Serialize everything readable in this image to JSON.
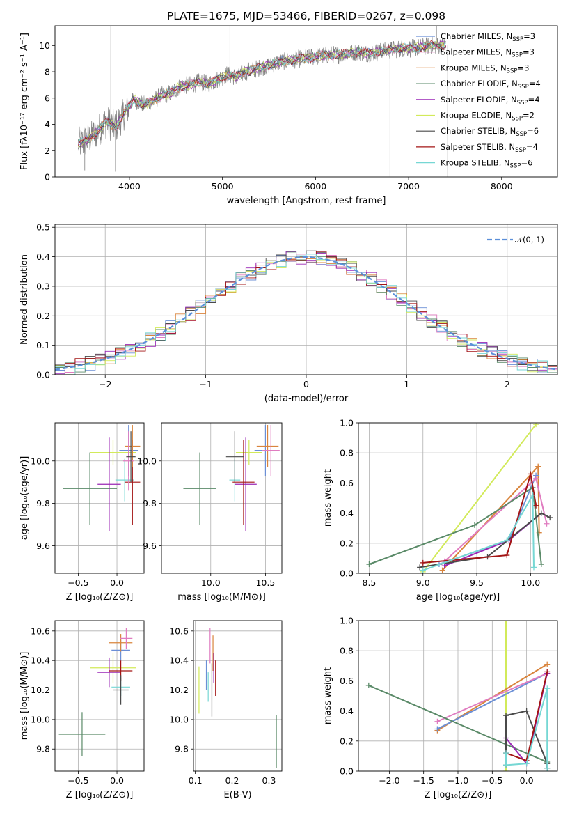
{
  "chart_data": [
    {
      "id": "spectrum",
      "type": "line",
      "title": "PLATE=1675, MJD=53466, FIBERID=0267, z=0.098",
      "xlabel": "wavelength [Angstrom, rest frame]",
      "ylabel": "Flux [fλ10⁻¹⁷ erg cm⁻² s⁻¹ A⁻¹]",
      "xlim": [
        3200,
        8600
      ],
      "ylim": [
        0,
        11.5
      ],
      "xticks": [
        4000,
        5000,
        6000,
        7000,
        8000
      ],
      "yticks": [
        0,
        2,
        4,
        6,
        8,
        10
      ],
      "grid": false,
      "legend_position": "top-right",
      "legend": [
        {
          "label": "Chabrier MILES, N_SSP=3",
          "color": "#6b8fd6"
        },
        {
          "label": "Salpeter MILES, N_SSP=3",
          "color": "#e07cc0"
        },
        {
          "label": "Kroupa MILES, N_SSP=3",
          "color": "#d9843c"
        },
        {
          "label": "Chabrier ELODIE, N_SSP=4",
          "color": "#5a8a68"
        },
        {
          "label": "Salpeter ELODIE, N_SSP=4",
          "color": "#9a27b5"
        },
        {
          "label": "Kroupa ELODIE, N_SSP=2",
          "color": "#d2ea5a"
        },
        {
          "label": "Chabrier STELIB, N_SSP=6",
          "color": "#4a4a4a"
        },
        {
          "label": "Salpeter STELIB, N_SSP=4",
          "color": "#a31515"
        },
        {
          "label": "Kroupa STELIB, N_SSP=6",
          "color": "#76d7d4"
        }
      ],
      "data_series": {
        "name": "data",
        "color": "#808080"
      },
      "continuum": {
        "x": [
          3450,
          3550,
          3650,
          3750,
          3850,
          3950,
          4050,
          4150,
          4250,
          4350,
          4450,
          4550,
          4650,
          4750,
          4850,
          4950,
          5050,
          5150,
          5250,
          5350,
          5450,
          5550,
          5650,
          5750,
          5850,
          5950,
          6050,
          6150,
          6250,
          6350,
          6450,
          6550,
          6650,
          6750,
          6850,
          6950,
          7050,
          7150,
          7250,
          7350
        ],
        "y": [
          2.5,
          2.8,
          3.4,
          4.2,
          3.8,
          4.9,
          5.9,
          5.5,
          5.8,
          6.2,
          6.4,
          6.9,
          7.0,
          7.2,
          7.1,
          7.4,
          7.8,
          7.6,
          8.0,
          8.2,
          8.4,
          8.6,
          8.8,
          8.9,
          9.0,
          9.1,
          9.2,
          9.3,
          9.3,
          9.4,
          9.5,
          9.4,
          9.5,
          9.6,
          9.7,
          9.8,
          9.8,
          9.9,
          10.0,
          10.0
        ]
      }
    },
    {
      "id": "residuals",
      "type": "line",
      "xlabel": "(data-model)/error",
      "ylabel": "Normed distribution",
      "xlim": [
        -2.5,
        2.5
      ],
      "ylim": [
        0,
        0.51
      ],
      "xticks": [
        -2,
        -1,
        0,
        1,
        2
      ],
      "yticks": [
        0.0,
        0.1,
        0.2,
        0.3,
        0.4,
        0.5
      ],
      "grid": true,
      "legend_position": "top-right",
      "legend": [
        {
          "label": "𝒩(0, 1)",
          "color": "#5b8fd9"
        }
      ],
      "gaussian": {
        "mean": 0,
        "sigma": 1
      }
    },
    {
      "id": "age_vs_Z",
      "type": "scatter",
      "xlabel": "Z [log₁₀(Z/Z⊙)]",
      "ylabel": "age  [log₁₀(age/yr)]",
      "xlim": [
        -0.8,
        0.35
      ],
      "ylim": [
        9.47,
        10.18
      ],
      "xticks": [
        -0.5,
        0.0
      ],
      "yticks": [
        9.6,
        9.8,
        10.0
      ],
      "grid": true,
      "points": [
        {
          "x": -0.35,
          "y": 9.87,
          "xerr": 0.35,
          "yerr": 0.17,
          "color": "#5a8a68"
        },
        {
          "x": -0.05,
          "y": 10.04,
          "xerr": 0.3,
          "yerr": 0.06,
          "color": "#d2ea5a"
        },
        {
          "x": -0.1,
          "y": 9.89,
          "xerr": 0.15,
          "yerr": 0.22,
          "color": "#9a27b5"
        },
        {
          "x": 0.1,
          "y": 9.91,
          "xerr": 0.12,
          "yerr": 0.1,
          "color": "#76d7d4"
        },
        {
          "x": 0.2,
          "y": 9.9,
          "xerr": 0.1,
          "yerr": 0.2,
          "color": "#a31515"
        },
        {
          "x": 0.15,
          "y": 10.05,
          "xerr": 0.12,
          "yerr": 0.12,
          "color": "#6b8fd6"
        },
        {
          "x": 0.2,
          "y": 10.07,
          "xerr": 0.1,
          "yerr": 0.1,
          "color": "#d9843c"
        },
        {
          "x": 0.15,
          "y": 10.0,
          "xerr": 0.07,
          "yerr": 0.14,
          "color": "#e07cc0"
        },
        {
          "x": 0.18,
          "y": 10.02,
          "xerr": 0.06,
          "yerr": 0.12,
          "color": "#4a4a4a"
        }
      ]
    },
    {
      "id": "age_vs_mass",
      "type": "scatter",
      "xlabel": "mass [log₁₀(M/M⊙)]",
      "ylabel": "",
      "xlim": [
        9.55,
        10.65
      ],
      "ylim": [
        9.47,
        10.18
      ],
      "xticks": [
        10.0,
        10.5
      ],
      "yticks": [
        9.6,
        9.8,
        10.0
      ],
      "grid": true,
      "points": [
        {
          "x": 9.9,
          "y": 9.87,
          "xerr": 0.15,
          "yerr": 0.17,
          "color": "#5a8a68"
        },
        {
          "x": 10.35,
          "y": 10.04,
          "xerr": 0.12,
          "yerr": 0.06,
          "color": "#d2ea5a"
        },
        {
          "x": 10.32,
          "y": 9.89,
          "xerr": 0.1,
          "yerr": 0.22,
          "color": "#9a27b5"
        },
        {
          "x": 10.22,
          "y": 9.91,
          "xerr": 0.05,
          "yerr": 0.1,
          "color": "#76d7d4"
        },
        {
          "x": 10.3,
          "y": 9.9,
          "xerr": 0.1,
          "yerr": 0.2,
          "color": "#a31515"
        },
        {
          "x": 10.5,
          "y": 10.05,
          "xerr": 0.1,
          "yerr": 0.12,
          "color": "#6b8fd6"
        },
        {
          "x": 10.52,
          "y": 10.07,
          "xerr": 0.1,
          "yerr": 0.1,
          "color": "#d9843c"
        },
        {
          "x": 10.55,
          "y": 10.05,
          "xerr": 0.08,
          "yerr": 0.12,
          "color": "#e07cc0"
        },
        {
          "x": 10.22,
          "y": 10.02,
          "xerr": 0.08,
          "yerr": 0.12,
          "color": "#4a4a4a"
        }
      ]
    },
    {
      "id": "massweight_vs_age",
      "type": "line",
      "xlabel": "age  [log₁₀(age/yr)]",
      "ylabel": "mass weight",
      "xlim": [
        8.4,
        10.25
      ],
      "ylim": [
        0,
        1.0
      ],
      "xticks": [
        8.5,
        9.0,
        9.5,
        10.0
      ],
      "yticks": [
        0.0,
        0.2,
        0.4,
        0.6,
        0.8,
        1.0
      ],
      "grid": true,
      "series": [
        {
          "color": "#d2ea5a",
          "x": [
            9.0,
            10.05
          ],
          "y": [
            0.01,
            0.99
          ]
        },
        {
          "color": "#d9843c",
          "x": [
            9.18,
            10.07,
            10.08
          ],
          "y": [
            0.02,
            0.71,
            0.27
          ]
        },
        {
          "color": "#6b8fd6",
          "x": [
            9.15,
            9.8,
            10.05
          ],
          "y": [
            0.06,
            0.22,
            0.65
          ]
        },
        {
          "color": "#e07cc0",
          "x": [
            9.2,
            10.05,
            10.15
          ],
          "y": [
            0.08,
            0.63,
            0.33
          ]
        },
        {
          "color": "#5a8a68",
          "x": [
            8.5,
            9.48,
            10.02,
            10.1
          ],
          "y": [
            0.06,
            0.32,
            0.57,
            0.06
          ]
        },
        {
          "color": "#9a27b5",
          "x": [
            9.2,
            9.8,
            10.1
          ],
          "y": [
            0.05,
            0.22,
            0.4
          ]
        },
        {
          "color": "#4a4a4a",
          "x": [
            8.97,
            9.6,
            10.1,
            10.18
          ],
          "y": [
            0.04,
            0.11,
            0.4,
            0.37
          ]
        },
        {
          "color": "#a31515",
          "x": [
            9.0,
            9.78,
            10.0,
            10.05
          ],
          "y": [
            0.07,
            0.12,
            0.66,
            0.45
          ]
        },
        {
          "color": "#76d7d4",
          "x": [
            9.0,
            9.78,
            10.02,
            10.03
          ],
          "y": [
            0.02,
            0.22,
            0.52,
            0.04
          ]
        }
      ]
    },
    {
      "id": "mass_vs_Z",
      "type": "scatter",
      "xlabel": "Z [log₁₀(Z/Z⊙)]",
      "ylabel": "mass [log₁₀(M/M⊙)]",
      "xlim": [
        -0.8,
        0.35
      ],
      "ylim": [
        9.65,
        10.67
      ],
      "xticks": [
        -0.5,
        0.0
      ],
      "yticks": [
        9.8,
        10.0,
        10.2,
        10.4,
        10.6
      ],
      "grid": true,
      "points": [
        {
          "x": -0.45,
          "y": 9.9,
          "xerr": 0.3,
          "yerr": 0.15,
          "color": "#5a8a68"
        },
        {
          "x": -0.05,
          "y": 10.35,
          "xerr": 0.3,
          "yerr": 0.1,
          "color": "#d2ea5a"
        },
        {
          "x": -0.1,
          "y": 10.32,
          "xerr": 0.15,
          "yerr": 0.1,
          "color": "#9a27b5"
        },
        {
          "x": 0.05,
          "y": 10.22,
          "xerr": 0.12,
          "yerr": 0.06,
          "color": "#76d7d4"
        },
        {
          "x": 0.05,
          "y": 10.33,
          "xerr": 0.15,
          "yerr": 0.07,
          "color": "#a31515"
        },
        {
          "x": 0.05,
          "y": 10.47,
          "xerr": 0.12,
          "yerr": 0.07,
          "color": "#6b8fd6"
        },
        {
          "x": 0.05,
          "y": 10.52,
          "xerr": 0.15,
          "yerr": 0.06,
          "color": "#d9843c"
        },
        {
          "x": 0.12,
          "y": 10.55,
          "xerr": 0.08,
          "yerr": 0.07,
          "color": "#e07cc0"
        },
        {
          "x": 0.05,
          "y": 10.2,
          "xerr": 0.1,
          "yerr": 0.1,
          "color": "#4a4a4a"
        }
      ]
    },
    {
      "id": "mass_vs_EBV",
      "type": "scatter",
      "xlabel": "E(B-V)",
      "ylabel": "",
      "xlim": [
        0.095,
        0.335
      ],
      "ylim": [
        9.65,
        10.67
      ],
      "xticks": [
        0.1,
        0.2,
        0.3
      ],
      "yticks": [
        9.8,
        10.0,
        10.2,
        10.4,
        10.6
      ],
      "grid": true,
      "points": [
        {
          "x": 0.32,
          "y": 9.85,
          "xerr": 0.0,
          "yerr": 0.18,
          "color": "#5a8a68"
        },
        {
          "x": 0.11,
          "y": 10.2,
          "xerr": 0.0,
          "yerr": 0.16,
          "color": "#d2ea5a"
        },
        {
          "x": 0.13,
          "y": 10.3,
          "xerr": 0.0,
          "yerr": 0.1,
          "color": "#6b8fd6"
        },
        {
          "x": 0.14,
          "y": 10.5,
          "xerr": 0.0,
          "yerr": 0.12,
          "color": "#e07cc0"
        },
        {
          "x": 0.148,
          "y": 10.45,
          "xerr": 0.0,
          "yerr": 0.12,
          "color": "#d9843c"
        },
        {
          "x": 0.145,
          "y": 10.2,
          "xerr": 0.0,
          "yerr": 0.18,
          "color": "#4a4a4a"
        },
        {
          "x": 0.155,
          "y": 10.28,
          "xerr": 0.0,
          "yerr": 0.12,
          "color": "#a31515"
        },
        {
          "x": 0.135,
          "y": 10.22,
          "xerr": 0.0,
          "yerr": 0.1,
          "color": "#76d7d4"
        },
        {
          "x": 0.15,
          "y": 10.35,
          "xerr": 0.0,
          "yerr": 0.1,
          "color": "#9a27b5"
        }
      ]
    },
    {
      "id": "massweight_vs_Z",
      "type": "line",
      "xlabel": "Z [log₁₀(Z/Z⊙)]",
      "ylabel": "mass weight",
      "xlim": [
        -2.45,
        0.45
      ],
      "ylim": [
        0,
        1.0
      ],
      "xticks": [
        -2.0,
        -1.5,
        -1.0,
        -0.5,
        0.0
      ],
      "yticks": [
        0.0,
        0.2,
        0.4,
        0.6,
        0.8,
        1.0
      ],
      "grid": true,
      "series": [
        {
          "color": "#d2ea5a",
          "x": [
            -0.3,
            -0.3
          ],
          "y": [
            1.0,
            0.0
          ]
        },
        {
          "color": "#d9843c",
          "x": [
            -1.3,
            0.3
          ],
          "y": [
            0.27,
            0.71
          ]
        },
        {
          "color": "#6b8fd6",
          "x": [
            -1.3,
            0.3
          ],
          "y": [
            0.28,
            0.65
          ]
        },
        {
          "color": "#e07cc0",
          "x": [
            -1.3,
            0.3
          ],
          "y": [
            0.33,
            0.65
          ]
        },
        {
          "color": "#5a8a68",
          "x": [
            -2.3,
            0.3,
            0.3
          ],
          "y": [
            0.57,
            0.06,
            0.02
          ]
        },
        {
          "color": "#9a27b5",
          "x": [
            -0.3,
            0.0,
            0.3
          ],
          "y": [
            0.22,
            0.05,
            0.65
          ]
        },
        {
          "color": "#4a4a4a",
          "x": [
            -0.3,
            -0.3,
            0.0,
            0.3,
            0.3
          ],
          "y": [
            0.04,
            0.37,
            0.4,
            0.05,
            0.02
          ]
        },
        {
          "color": "#a31515",
          "x": [
            -0.3,
            0.0,
            0.3
          ],
          "y": [
            0.12,
            0.07,
            0.66
          ]
        },
        {
          "color": "#76d7d4",
          "x": [
            -0.3,
            -0.3,
            0.0,
            0.3,
            0.3
          ],
          "y": [
            0.12,
            0.04,
            0.05,
            0.55,
            0.02
          ]
        }
      ]
    }
  ]
}
